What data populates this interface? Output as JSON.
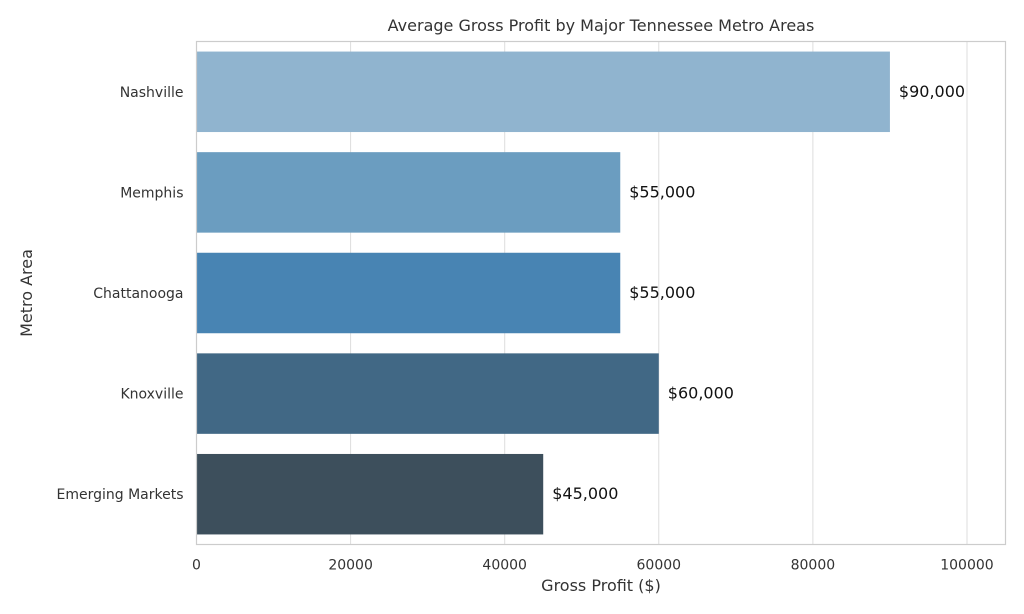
{
  "chart_data": {
    "type": "bar",
    "orientation": "horizontal",
    "title": "Average Gross Profit by Major Tennessee Metro Areas",
    "xlabel": "Gross Profit ($)",
    "ylabel": "Metro Area",
    "xlim": [
      0,
      105000
    ],
    "xticks": [
      0,
      20000,
      40000,
      60000,
      80000,
      100000
    ],
    "xtick_labels": [
      "0",
      "20000",
      "40000",
      "60000",
      "80000",
      "100000"
    ],
    "grid": true,
    "categories": [
      "Nashville",
      "Memphis",
      "Chattanooga",
      "Knoxville",
      "Emerging Markets"
    ],
    "values": [
      90000,
      55000,
      55000,
      60000,
      45000
    ],
    "data_labels": [
      "$90,000",
      "$55,000",
      "$55,000",
      "$60,000",
      "$45,000"
    ],
    "colors": [
      "#90b4cf",
      "#6b9dc0",
      "#4884b3",
      "#416885",
      "#3d4f5c"
    ]
  }
}
